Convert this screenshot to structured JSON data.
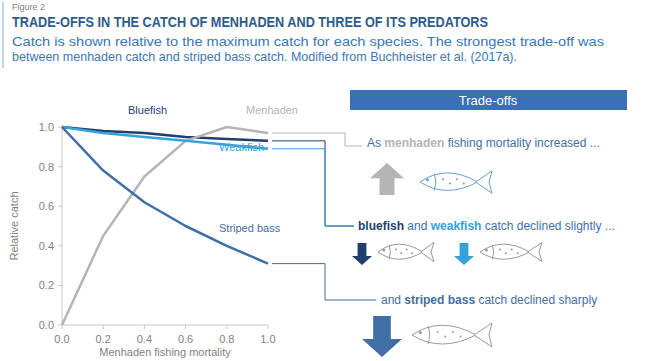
{
  "chart_data": {
    "type": "line",
    "figure_label": "Figure 2",
    "title": "TRADE-OFFS IN THE CATCH OF MENHADEN AND THREE OF ITS PREDATORS",
    "subtitle": [
      "Catch is shown relative to the maximum catch for each species. The strongest trade-off was",
      "between menhaden catch and striped bass catch. Modified from Buchheister et al. (2017a)."
    ],
    "x_label": "Menhaden fishing mortality",
    "y_label": "Relative catch",
    "x": [
      0,
      0.2,
      0.4,
      0.6,
      0.8,
      1
    ],
    "series": [
      {
        "name": "Bluefish",
        "color": "#1f3f6e",
        "values": [
          1,
          0.98,
          0.97,
          0.95,
          0.94,
          0.93
        ]
      },
      {
        "name": "Menhaden",
        "color": "#b5b5b5",
        "values": [
          0,
          0.45,
          0.75,
          0.93,
          1,
          0.97
        ]
      },
      {
        "name": "Weakfish",
        "color": "#35a2d9",
        "values": [
          1,
          0.97,
          0.95,
          0.93,
          0.91,
          0.89
        ]
      },
      {
        "name": "Striped bass",
        "color": "#3f6fa6",
        "values": [
          1,
          0.78,
          0.62,
          0.5,
          0.4,
          0.31
        ]
      }
    ],
    "xlim": [
      0,
      1
    ],
    "ylim": [
      0,
      1
    ],
    "xticks": [
      {
        "value": 0,
        "label": "0.0"
      },
      0.2,
      0.4,
      0.6,
      0.8,
      {
        "value": 1,
        "label": "1.0"
      }
    ],
    "yticks": [
      {
        "value": 0,
        "label": "0.0"
      },
      0.2,
      0.4,
      0.6,
      0.8,
      {
        "value": 1,
        "label": "1.0"
      }
    ],
    "grid": false,
    "panel_title": "Trade-offs",
    "annotations": [
      [
        "As ",
        "menhaden",
        " fishing mortality increased ..."
      ],
      [
        "bluefish",
        " and ",
        "weakfish",
        " catch declined slightly ..."
      ],
      [
        "and ",
        "striped bass",
        " catch declined sharply"
      ]
    ]
  }
}
